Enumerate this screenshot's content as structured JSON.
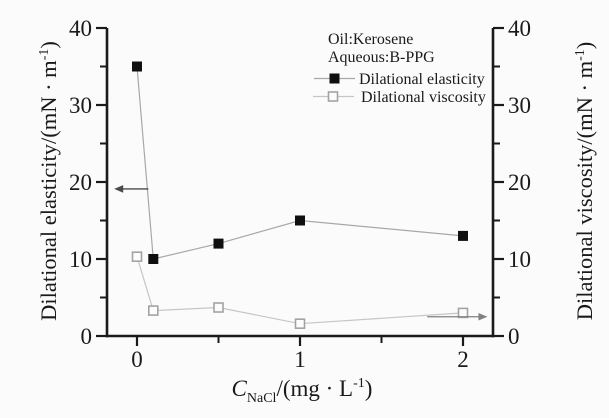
{
  "figure": {
    "background": "#fbfbfb",
    "axis_color": "#1a1a1a"
  },
  "legend": {
    "header": [
      "Oil:Kerosene",
      "Aqueous:B-PPG"
    ],
    "items": [
      {
        "label": "Dilational elasticity",
        "marker": "filled-square"
      },
      {
        "label": "Dilational viscosity",
        "marker": "open-square"
      }
    ]
  },
  "axis_labels": {
    "x": {
      "var": "C",
      "sub": "NaCl",
      "mid": "/(mg · L",
      "sup": "-1",
      "end": ")"
    },
    "y_left": {
      "main": "Dilational elasticity/(mN · m",
      "sup": "-1",
      "end": ")"
    },
    "y_right": {
      "main": "Dilational viscosity/(mN · m",
      "sup": "-1",
      "end": ")"
    }
  },
  "chart_data": {
    "type": "line",
    "x": [
      0,
      0.1,
      0.5,
      1,
      2
    ],
    "series": [
      {
        "name": "Dilational elasticity",
        "axis": "left",
        "marker": "filled-square",
        "marker_color": "#0f0f0f",
        "line_color": "#a8a8a8",
        "values": [
          35,
          10,
          12,
          15,
          13
        ]
      },
      {
        "name": "Dilational viscosity",
        "axis": "right",
        "marker": "open-square",
        "marker_color": "#fcfcfc",
        "marker_border_color": "#a3a3a3",
        "line_color": "#c6c6c6",
        "values": [
          10.3,
          3.3,
          3.7,
          1.6,
          3.0
        ]
      }
    ],
    "title": "",
    "xlabel": "C_NaCl/(mg · L-1)",
    "ylabel_left": "Dilational elasticity/(mN · m-1)",
    "ylabel_right": "Dilational viscosity/(mN · m-1)",
    "xlim": [
      -0.184,
      2.184
    ],
    "ylim": [
      0,
      40
    ],
    "grid": false,
    "legend_position": "top-center",
    "x_ticks": {
      "major": [
        {
          "value": 0,
          "label": "0"
        },
        {
          "value": 1,
          "label": "1"
        },
        {
          "value": 2,
          "label": "2"
        }
      ],
      "minor": [
        0.5,
        1.5
      ]
    },
    "y_ticks": {
      "major": [
        {
          "value": 0,
          "label": "0"
        },
        {
          "value": 10,
          "label": "10"
        },
        {
          "value": 20,
          "label": "20"
        },
        {
          "value": 30,
          "label": "30"
        },
        {
          "value": 40,
          "label": "40"
        }
      ],
      "minor": [
        5,
        15,
        25,
        35
      ],
      "shown_on": [
        "left",
        "right"
      ]
    },
    "annotations": {
      "text": [
        "Oil:Kerosene",
        "Aqueous:B-PPG"
      ],
      "arrows": [
        {
          "direction": "left",
          "y_value": 19.1,
          "x_from": 0.07,
          "x_to": -0.14,
          "color": "#4a4a4a",
          "meaning": "elasticity series reads left axis"
        },
        {
          "direction": "right",
          "y_value": 2.5,
          "x_from": 1.78,
          "x_to": 2.15,
          "color": "#818181",
          "meaning": "viscosity series reads right axis"
        }
      ]
    }
  }
}
